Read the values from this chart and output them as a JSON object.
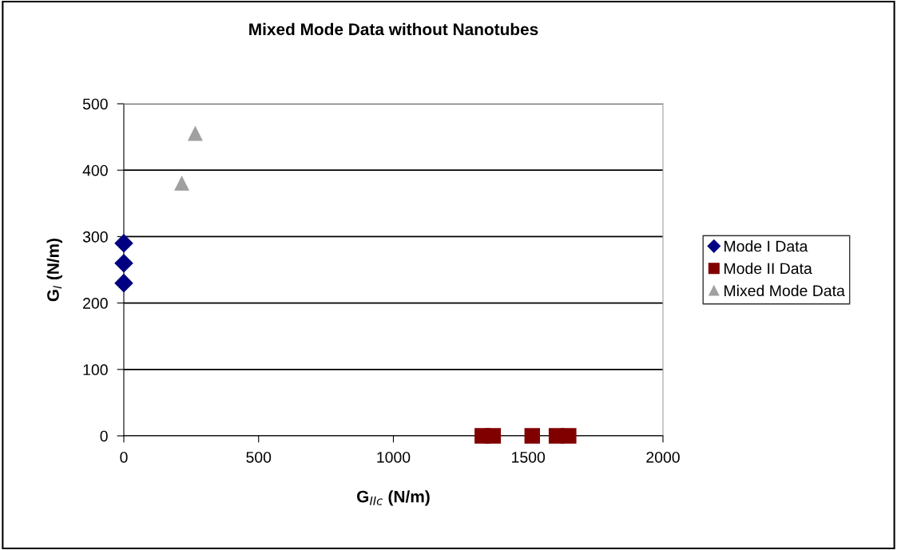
{
  "chart_data": {
    "type": "scatter",
    "title": "Mixed Mode Data without Nanotubes",
    "xlabel": "G$_{IIc}$ (N/m)",
    "ylabel": "G$_{I}$ (N/m)",
    "series": [
      {
        "name": "Mode I Data",
        "color": "#000080",
        "marker": "diamond",
        "x": [
          0,
          0,
          0
        ],
        "values": [
          290,
          260,
          230
        ]
      },
      {
        "name": "Mode II Data",
        "color": "#800000",
        "marker": "square",
        "x": [
          1330,
          1370,
          1515,
          1605,
          1650
        ],
        "values": [
          0,
          0,
          0,
          0,
          0
        ]
      },
      {
        "name": "Mixed Mode Data",
        "color": "#a0a0a0",
        "marker": "triangle",
        "x": [
          215,
          265
        ],
        "values": [
          380,
          455
        ]
      }
    ],
    "xlim": [
      0,
      2000
    ],
    "xticks": [
      0,
      500,
      1000,
      1500,
      2000
    ],
    "ylim": [
      0,
      500
    ],
    "yticks": [
      0,
      100,
      200,
      300,
      400,
      500
    ],
    "grid": "y",
    "legend": "right"
  }
}
